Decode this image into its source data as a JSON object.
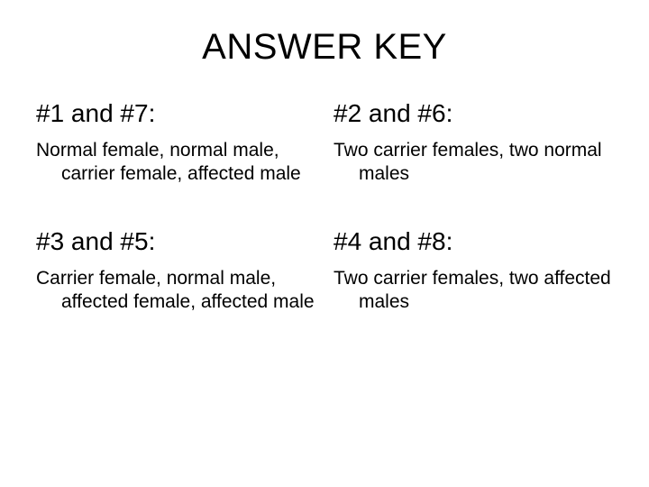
{
  "title": "ANSWER KEY",
  "cells": [
    {
      "heading": "#1 and #7:",
      "body": "Normal female, normal male, carrier female, affected male"
    },
    {
      "heading": "#2 and #6:",
      "body": "Two carrier females, two normal males"
    },
    {
      "heading": "#3 and #5:",
      "body": "Carrier female, normal male, affected female, affected male"
    },
    {
      "heading": "#4 and #8:",
      "body": "Two carrier females, two affected males"
    }
  ],
  "colors": {
    "background": "#ffffff",
    "text": "#000000"
  },
  "typography": {
    "title_fontsize": 40,
    "heading_fontsize": 28,
    "body_fontsize": 21,
    "font_family": "Arial"
  }
}
